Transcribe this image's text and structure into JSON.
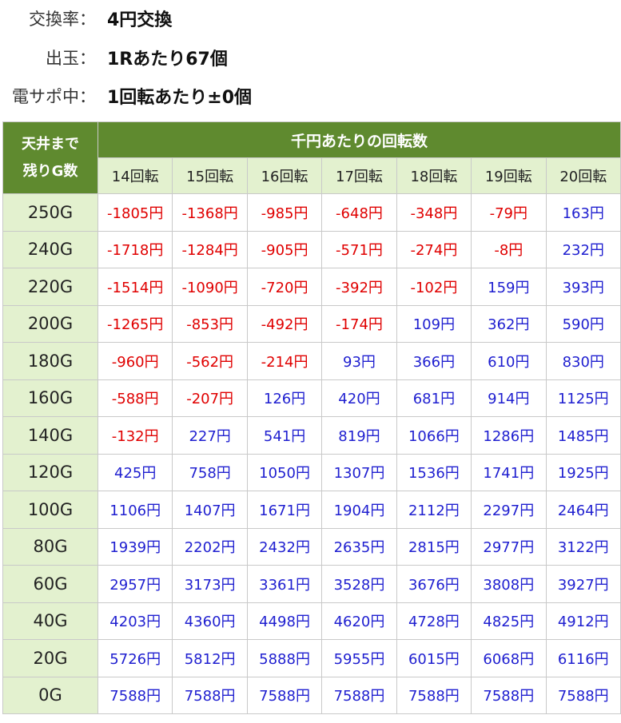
{
  "info": {
    "exchange": {
      "label": "交換率：",
      "value": "4円交換"
    },
    "payout": {
      "label": "出玉：",
      "value": "1Rあたり67個"
    },
    "support": {
      "label": "電サポ中：",
      "value": "1回転あたり±0個"
    }
  },
  "table": {
    "corner_label": "天井まで\n残りG数",
    "header_main": "千円あたりの回転数",
    "columns": [
      "14回転",
      "15回転",
      "16回転",
      "17回転",
      "18回転",
      "19回転",
      "20回転"
    ],
    "colors": {
      "negative": "#e00000",
      "positive": "#1f1fd0",
      "header_bg": "#5f8a2f",
      "sub_bg": "#e3f1cf"
    },
    "rows": [
      {
        "label": "250G",
        "cells": [
          "-1805円",
          "-1368円",
          "-985円",
          "-648円",
          "-348円",
          "-79円",
          "163円"
        ]
      },
      {
        "label": "240G",
        "cells": [
          "-1718円",
          "-1284円",
          "-905円",
          "-571円",
          "-274円",
          "-8円",
          "232円"
        ]
      },
      {
        "label": "220G",
        "cells": [
          "-1514円",
          "-1090円",
          "-720円",
          "-392円",
          "-102円",
          "159円",
          "393円"
        ]
      },
      {
        "label": "200G",
        "cells": [
          "-1265円",
          "-853円",
          "-492円",
          "-174円",
          "109円",
          "362円",
          "590円"
        ]
      },
      {
        "label": "180G",
        "cells": [
          "-960円",
          "-562円",
          "-214円",
          "93円",
          "366円",
          "610円",
          "830円"
        ]
      },
      {
        "label": "160G",
        "cells": [
          "-588円",
          "-207円",
          "126円",
          "420円",
          "681円",
          "914円",
          "1125円"
        ]
      },
      {
        "label": "140G",
        "cells": [
          "-132円",
          "227円",
          "541円",
          "819円",
          "1066円",
          "1286円",
          "1485円"
        ]
      },
      {
        "label": "120G",
        "cells": [
          "425円",
          "758円",
          "1050円",
          "1307円",
          "1536円",
          "1741円",
          "1925円"
        ]
      },
      {
        "label": "100G",
        "cells": [
          "1106円",
          "1407円",
          "1671円",
          "1904円",
          "2112円",
          "2297円",
          "2464円"
        ]
      },
      {
        "label": "80G",
        "cells": [
          "1939円",
          "2202円",
          "2432円",
          "2635円",
          "2815円",
          "2977円",
          "3122円"
        ]
      },
      {
        "label": "60G",
        "cells": [
          "2957円",
          "3173円",
          "3361円",
          "3528円",
          "3676円",
          "3808円",
          "3927円"
        ]
      },
      {
        "label": "40G",
        "cells": [
          "4203円",
          "4360円",
          "4498円",
          "4620円",
          "4728円",
          "4825円",
          "4912円"
        ]
      },
      {
        "label": "20G",
        "cells": [
          "5726円",
          "5812円",
          "5888円",
          "5955円",
          "6015円",
          "6068円",
          "6116円"
        ]
      },
      {
        "label": "0G",
        "cells": [
          "7588円",
          "7588円",
          "7588円",
          "7588円",
          "7588円",
          "7588円",
          "7588円"
        ]
      }
    ]
  }
}
